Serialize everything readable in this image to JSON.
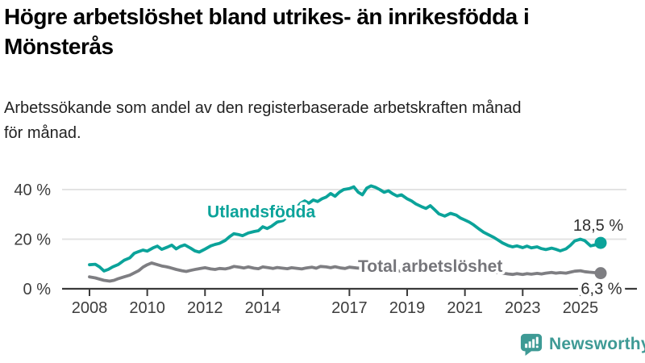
{
  "header": {
    "title_lines": [
      "Högre arbetslöshet bland utrikes- än inrikesfödda i",
      "Mönsterås"
    ],
    "subtitle_lines": [
      "Arbetssökande som andel av den registerbaserade arbetskraften månad",
      "för månad."
    ]
  },
  "branding": {
    "name": "Newsworthy",
    "icon": "bar-chart-speech-bubble",
    "color": "#3e9a95"
  },
  "chart_data": {
    "type": "line",
    "title": "Högre arbetslöshet bland utrikes- än inrikesfödda i Mönsterås",
    "subtitle": "Arbetssökande som andel av den registerbaserade arbetskraften månad för månad.",
    "unit": "%",
    "grid": "horizontal",
    "legend_position": "inline-labels",
    "xlim": [
      2007.1,
      2026.9
    ],
    "ylim": [
      0,
      44
    ],
    "x_ticks": [
      2008,
      2010,
      2012,
      2014,
      2017,
      2019,
      2021,
      2023,
      2025
    ],
    "y_ticks": [
      {
        "v": 0,
        "label": "0 %"
      },
      {
        "v": 20,
        "label": "20 %"
      },
      {
        "v": 40,
        "label": "40 %"
      }
    ],
    "colors": {
      "grid": "#e3e3e3",
      "axis": "#3a3a3a",
      "tick_text": "#3d3d3d",
      "end_label_text": "#2e2e2e"
    },
    "series": [
      {
        "name": "Total arbetslöshet",
        "color": "#7e7e82",
        "label_color": "#75757a",
        "label_at": [
          2019.8,
          6.9
        ],
        "end_label": "6,3 %",
        "end_label_side": "axis",
        "end_value": 6.3,
        "points": [
          [
            2008.0,
            4.8
          ],
          [
            2008.2,
            4.4
          ],
          [
            2008.35,
            3.9
          ],
          [
            2008.5,
            3.4
          ],
          [
            2008.7,
            3.1
          ],
          [
            2008.85,
            3.4
          ],
          [
            2009.0,
            4.1
          ],
          [
            2009.2,
            4.8
          ],
          [
            2009.4,
            5.5
          ],
          [
            2009.55,
            6.4
          ],
          [
            2009.7,
            7.3
          ],
          [
            2009.85,
            8.7
          ],
          [
            2010.0,
            9.7
          ],
          [
            2010.15,
            10.4
          ],
          [
            2010.3,
            9.9
          ],
          [
            2010.5,
            9.2
          ],
          [
            2010.65,
            8.9
          ],
          [
            2010.8,
            8.5
          ],
          [
            2011.0,
            7.8
          ],
          [
            2011.2,
            7.3
          ],
          [
            2011.35,
            7.0
          ],
          [
            2011.5,
            7.4
          ],
          [
            2011.7,
            7.9
          ],
          [
            2011.85,
            8.2
          ],
          [
            2012.0,
            8.5
          ],
          [
            2012.2,
            8.0
          ],
          [
            2012.35,
            7.8
          ],
          [
            2012.5,
            8.2
          ],
          [
            2012.7,
            8.0
          ],
          [
            2012.85,
            8.4
          ],
          [
            2013.0,
            9.0
          ],
          [
            2013.2,
            8.7
          ],
          [
            2013.35,
            8.4
          ],
          [
            2013.5,
            8.8
          ],
          [
            2013.7,
            8.3
          ],
          [
            2013.85,
            8.1
          ],
          [
            2014.0,
            8.8
          ],
          [
            2014.2,
            8.5
          ],
          [
            2014.35,
            8.2
          ],
          [
            2014.5,
            8.6
          ],
          [
            2014.7,
            8.3
          ],
          [
            2014.85,
            8.1
          ],
          [
            2015.0,
            8.5
          ],
          [
            2015.2,
            8.2
          ],
          [
            2015.35,
            8.0
          ],
          [
            2015.5,
            8.4
          ],
          [
            2015.7,
            8.7
          ],
          [
            2015.85,
            8.3
          ],
          [
            2016.0,
            9.0
          ],
          [
            2016.2,
            8.8
          ],
          [
            2016.35,
            8.5
          ],
          [
            2016.5,
            8.9
          ],
          [
            2016.7,
            8.4
          ],
          [
            2016.85,
            8.2
          ],
          [
            2017.0,
            8.7
          ],
          [
            2017.25,
            8.4
          ],
          [
            2017.5,
            8.2
          ],
          [
            2017.75,
            8.0
          ],
          [
            2018.0,
            7.8
          ],
          [
            2018.25,
            7.5
          ],
          [
            2018.5,
            7.3
          ],
          [
            2018.75,
            7.2
          ],
          [
            2019.0,
            7.1
          ],
          [
            2019.25,
            7.2
          ],
          [
            2019.5,
            7.4
          ],
          [
            2019.75,
            7.6
          ],
          [
            2020.0,
            7.9
          ],
          [
            2020.25,
            8.8
          ],
          [
            2020.5,
            9.3
          ],
          [
            2020.75,
            9.0
          ],
          [
            2021.0,
            8.6
          ],
          [
            2021.25,
            8.2
          ],
          [
            2021.5,
            7.7
          ],
          [
            2021.75,
            7.2
          ],
          [
            2022.0,
            6.8
          ],
          [
            2022.25,
            6.4
          ],
          [
            2022.5,
            6.0
          ],
          [
            2022.65,
            5.8
          ],
          [
            2022.8,
            6.1
          ],
          [
            2023.0,
            5.8
          ],
          [
            2023.15,
            6.1
          ],
          [
            2023.3,
            5.9
          ],
          [
            2023.5,
            6.2
          ],
          [
            2023.65,
            6.0
          ],
          [
            2023.8,
            6.3
          ],
          [
            2024.0,
            6.6
          ],
          [
            2024.15,
            6.3
          ],
          [
            2024.3,
            6.5
          ],
          [
            2024.5,
            6.3
          ],
          [
            2024.65,
            6.7
          ],
          [
            2024.8,
            7.1
          ],
          [
            2025.0,
            7.3
          ],
          [
            2025.15,
            6.9
          ],
          [
            2025.3,
            6.7
          ],
          [
            2025.5,
            6.5
          ],
          [
            2025.7,
            6.3
          ]
        ]
      },
      {
        "name": "Utlandsfödda",
        "color": "#0ba39a",
        "label_color": "#0ba39a",
        "label_at": [
          2013.95,
          28.8
        ],
        "end_label": "18,5 %",
        "end_label_side": "above",
        "end_value": 18.5,
        "points": [
          [
            2008.0,
            9.7
          ],
          [
            2008.2,
            9.9
          ],
          [
            2008.35,
            8.8
          ],
          [
            2008.5,
            7.2
          ],
          [
            2008.65,
            7.8
          ],
          [
            2008.8,
            8.8
          ],
          [
            2009.0,
            9.8
          ],
          [
            2009.2,
            11.5
          ],
          [
            2009.4,
            12.5
          ],
          [
            2009.55,
            14.3
          ],
          [
            2009.7,
            15.0
          ],
          [
            2009.85,
            15.6
          ],
          [
            2010.0,
            15.2
          ],
          [
            2010.2,
            16.5
          ],
          [
            2010.35,
            17.2
          ],
          [
            2010.5,
            15.9
          ],
          [
            2010.7,
            16.8
          ],
          [
            2010.85,
            17.6
          ],
          [
            2011.0,
            16.1
          ],
          [
            2011.15,
            17.1
          ],
          [
            2011.3,
            17.7
          ],
          [
            2011.5,
            16.4
          ],
          [
            2011.65,
            15.3
          ],
          [
            2011.8,
            14.8
          ],
          [
            2012.0,
            16.0
          ],
          [
            2012.2,
            17.3
          ],
          [
            2012.35,
            17.9
          ],
          [
            2012.5,
            18.3
          ],
          [
            2012.7,
            19.5
          ],
          [
            2012.85,
            21.0
          ],
          [
            2013.0,
            22.2
          ],
          [
            2013.15,
            21.9
          ],
          [
            2013.3,
            21.4
          ],
          [
            2013.5,
            22.5
          ],
          [
            2013.7,
            23.1
          ],
          [
            2013.85,
            23.4
          ],
          [
            2014.0,
            25.0
          ],
          [
            2014.15,
            24.3
          ],
          [
            2014.3,
            25.2
          ],
          [
            2014.5,
            26.9
          ],
          [
            2014.7,
            27.5
          ],
          [
            2014.85,
            29.0
          ],
          [
            2015.0,
            30.6
          ],
          [
            2015.15,
            32.3
          ],
          [
            2015.3,
            34.4
          ],
          [
            2015.45,
            35.4
          ],
          [
            2015.6,
            34.5
          ],
          [
            2015.75,
            35.8
          ],
          [
            2015.9,
            35.2
          ],
          [
            2016.05,
            36.3
          ],
          [
            2016.2,
            37.0
          ],
          [
            2016.35,
            38.4
          ],
          [
            2016.5,
            37.3
          ],
          [
            2016.65,
            38.9
          ],
          [
            2016.8,
            40.0
          ],
          [
            2017.0,
            40.4
          ],
          [
            2017.15,
            41.1
          ],
          [
            2017.3,
            39.0
          ],
          [
            2017.45,
            37.9
          ],
          [
            2017.6,
            40.6
          ],
          [
            2017.75,
            41.5
          ],
          [
            2017.9,
            40.9
          ],
          [
            2018.05,
            40.0
          ],
          [
            2018.2,
            38.9
          ],
          [
            2018.35,
            39.5
          ],
          [
            2018.5,
            38.3
          ],
          [
            2018.65,
            37.4
          ],
          [
            2018.8,
            37.9
          ],
          [
            2019.0,
            36.3
          ],
          [
            2019.15,
            35.4
          ],
          [
            2019.3,
            34.2
          ],
          [
            2019.5,
            33.1
          ],
          [
            2019.65,
            32.4
          ],
          [
            2019.8,
            33.5
          ],
          [
            2019.95,
            31.9
          ],
          [
            2020.1,
            30.2
          ],
          [
            2020.3,
            29.3
          ],
          [
            2020.5,
            30.4
          ],
          [
            2020.7,
            29.7
          ],
          [
            2020.85,
            28.5
          ],
          [
            2021.0,
            27.7
          ],
          [
            2021.15,
            26.9
          ],
          [
            2021.3,
            25.8
          ],
          [
            2021.5,
            24.0
          ],
          [
            2021.65,
            22.8
          ],
          [
            2021.8,
            21.9
          ],
          [
            2022.0,
            20.7
          ],
          [
            2022.15,
            19.6
          ],
          [
            2022.3,
            18.5
          ],
          [
            2022.5,
            17.4
          ],
          [
            2022.65,
            16.9
          ],
          [
            2022.8,
            17.3
          ],
          [
            2023.0,
            16.6
          ],
          [
            2023.15,
            17.2
          ],
          [
            2023.3,
            16.5
          ],
          [
            2023.5,
            16.9
          ],
          [
            2023.65,
            16.2
          ],
          [
            2023.8,
            15.8
          ],
          [
            2024.0,
            16.4
          ],
          [
            2024.15,
            15.9
          ],
          [
            2024.3,
            15.3
          ],
          [
            2024.5,
            16.1
          ],
          [
            2024.65,
            17.5
          ],
          [
            2024.8,
            19.3
          ],
          [
            2025.0,
            20.0
          ],
          [
            2025.15,
            19.4
          ],
          [
            2025.35,
            17.3
          ],
          [
            2025.5,
            17.7
          ],
          [
            2025.7,
            18.5
          ]
        ]
      }
    ]
  }
}
